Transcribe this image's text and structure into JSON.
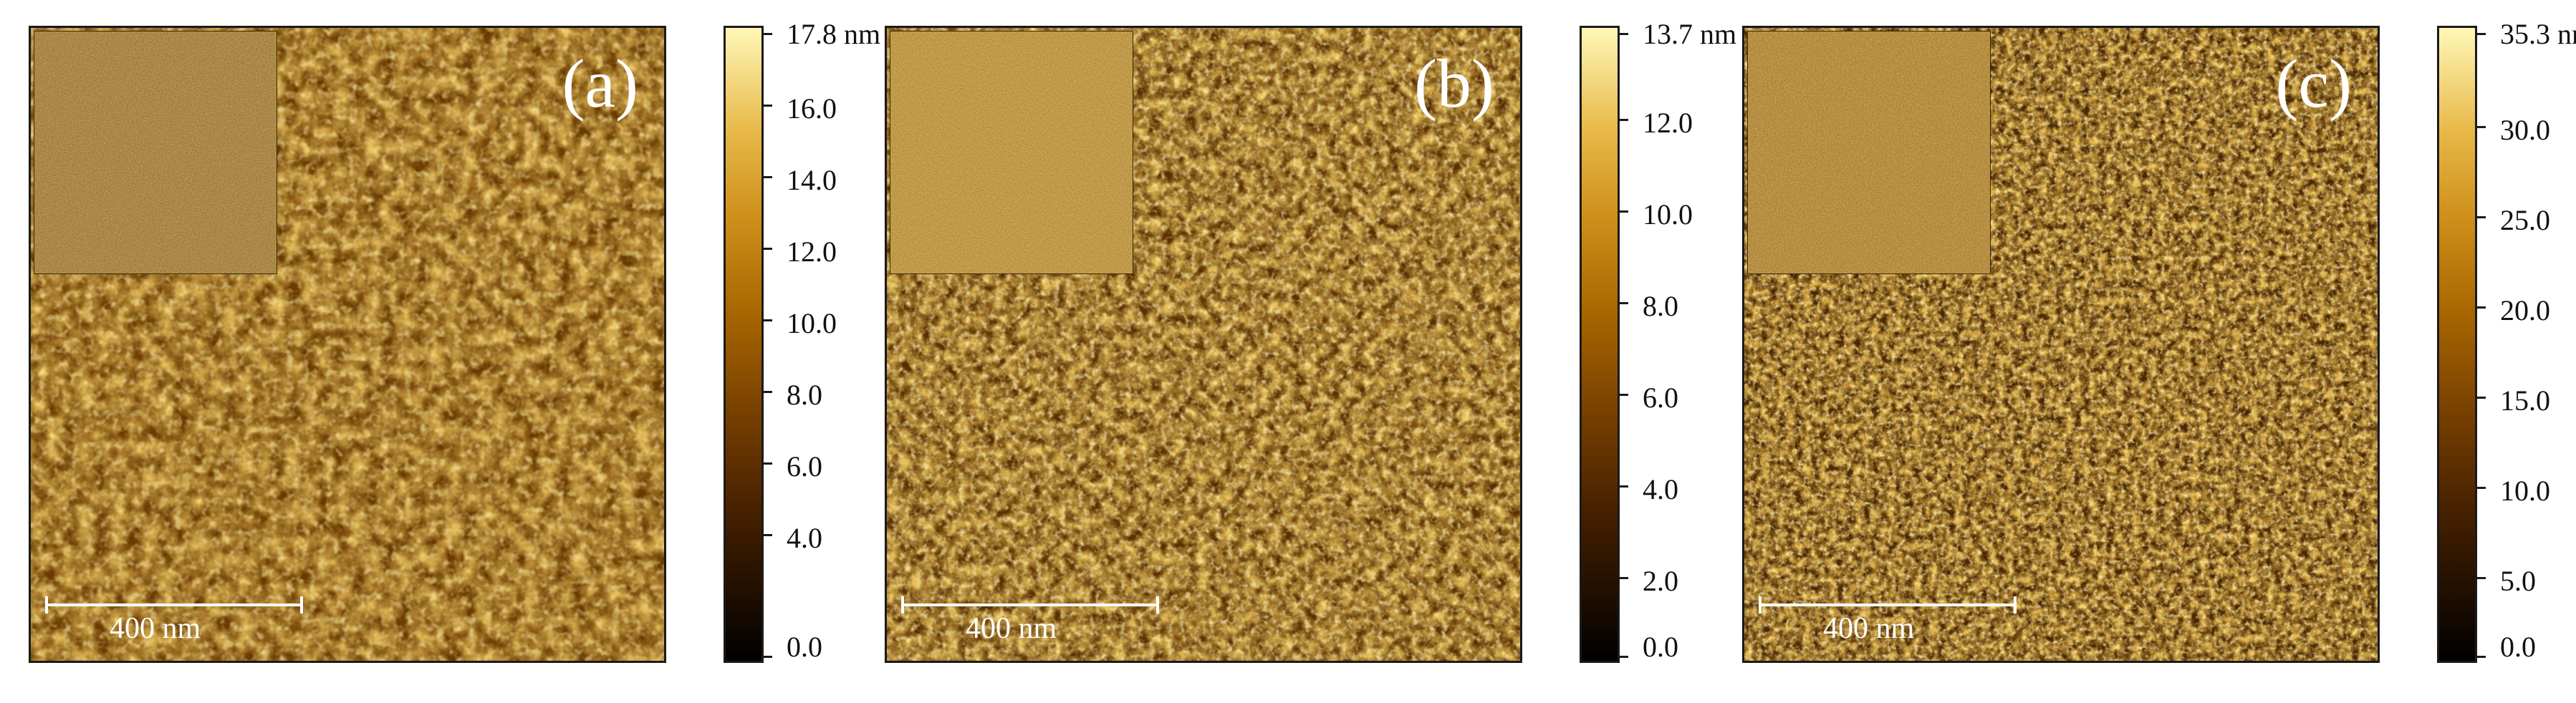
{
  "panels": [
    {
      "label": "(a)",
      "scale_bar": "400 nm",
      "colorbar_max": "17.8 nm",
      "colorbar_ticks": [
        "16.0",
        "14.0",
        "12.0",
        "10.0",
        "8.0",
        "6.0",
        "4.0",
        "0.0"
      ],
      "colorbar_max_value": 17.8
    },
    {
      "label": "(b)",
      "scale_bar": "400 nm",
      "colorbar_max": "13.7 nm",
      "colorbar_ticks": [
        "12.0",
        "10.0",
        "8.0",
        "6.0",
        "4.0",
        "2.0",
        "0.0"
      ],
      "colorbar_max_value": 13.7
    },
    {
      "label": "(c)",
      "scale_bar": "400 nm",
      "colorbar_max": "35.3 nm",
      "colorbar_ticks": [
        "30.0",
        "25.0",
        "20.0",
        "15.0",
        "10.0",
        "5.0",
        "0.0"
      ],
      "colorbar_max_value": 35.3
    }
  ],
  "colors": {
    "colormap_low": "#000000",
    "colormap_mid": "#a86600",
    "colormap_high": "#fff7b8",
    "grain": "#d49a2a",
    "background_surface": "#6a3a00"
  }
}
